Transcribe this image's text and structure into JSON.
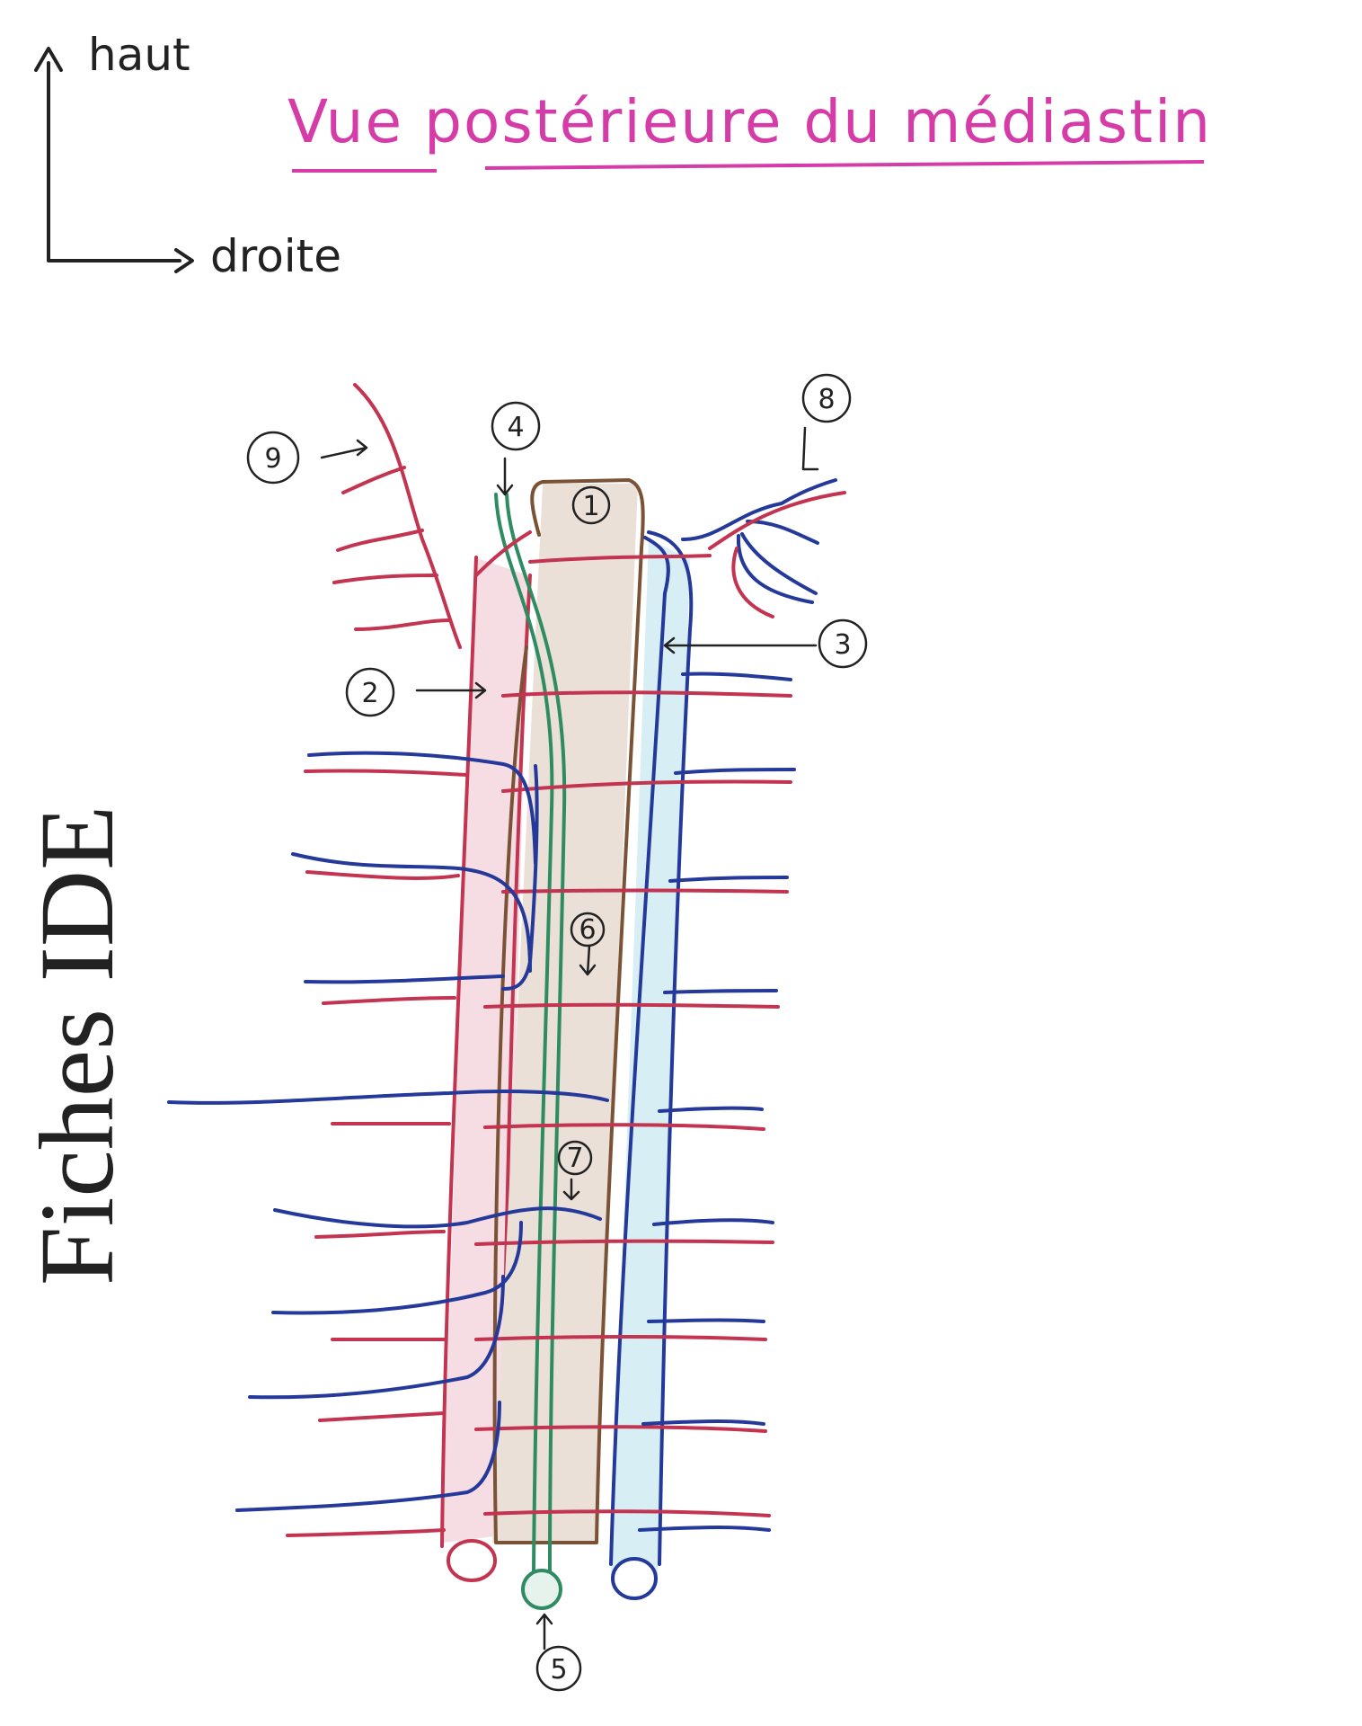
{
  "title": "Vue postérieure du médiastin",
  "orientation": {
    "up": "haut",
    "right": "droite"
  },
  "watermark": "Fiches IDE",
  "labels": [
    "1",
    "2",
    "3",
    "4",
    "5",
    "6",
    "7",
    "8",
    "9"
  ],
  "colors": {
    "title": "#d63ca8",
    "ink": "#222222",
    "artery": "#c23450",
    "vein": "#24399a",
    "duct": "#2e8b62",
    "esophagus": "#7a5236",
    "esophagus_fill": "#eae0d8",
    "aorta_fill": "#f6dde3",
    "azygos_fill": "#d7eef5"
  }
}
